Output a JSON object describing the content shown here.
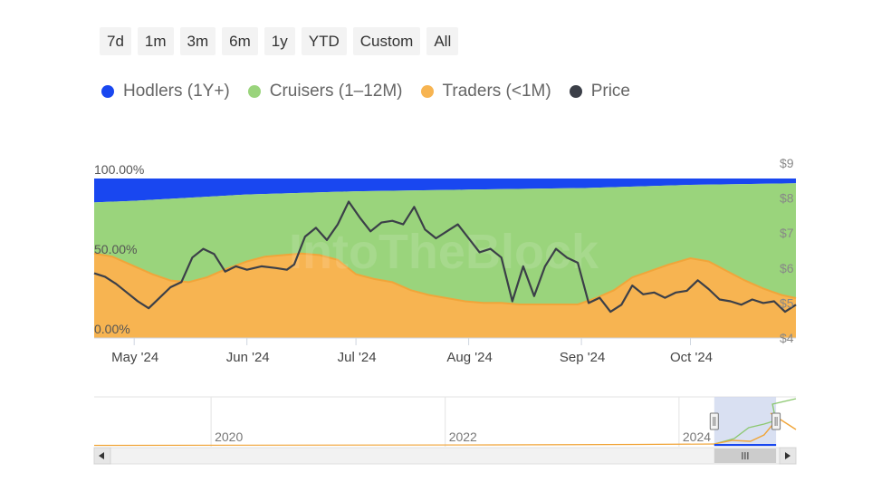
{
  "range_selector": {
    "buttons": [
      "7d",
      "1m",
      "3m",
      "6m",
      "1y",
      "YTD",
      "Custom",
      "All"
    ]
  },
  "colors": {
    "hodlers": "#1947f0",
    "cruisers": "#9ad47c",
    "traders": "#f7b451",
    "traders_line": "#f0a53a",
    "price": "#3b3f48",
    "navigator_bg": "#ccd6ee"
  },
  "chart_data": {
    "type": "area",
    "legend": [
      {
        "name": "Hodlers (1Y+)",
        "color": "#1947f0"
      },
      {
        "name": "Cruisers (1–12M)",
        "color": "#9ad47c"
      },
      {
        "name": "Traders (<1M)",
        "color": "#f7b451"
      },
      {
        "name": "Price",
        "color": "#3b3f48"
      }
    ],
    "legend_placement": "top-left",
    "x_axis": {
      "tick_labels": [
        "May '24",
        "Jun '24",
        "Jul '24",
        "Aug '24",
        "Sep '24",
        "Oct '24"
      ],
      "tick_dates": [
        "2024-05-01",
        "2024-06-01",
        "2024-07-01",
        "2024-08-01",
        "2024-09-01",
        "2024-10-01"
      ],
      "range": [
        "2024-04-20",
        "2024-10-30"
      ]
    },
    "y_left": {
      "tick_labels": [
        "100.00%",
        "50.00%",
        "0.00%"
      ],
      "range": [
        0,
        100
      ]
    },
    "y_right": {
      "tick_labels": [
        "$9",
        "$8",
        "$7",
        "$6",
        "$5",
        "$4"
      ],
      "range": [
        4,
        9
      ]
    },
    "series": [
      {
        "name": "Traders (<1M)",
        "unit": "%",
        "points": [
          [
            "2024-04-20",
            53
          ],
          [
            "2024-04-25",
            51
          ],
          [
            "2024-05-01",
            45
          ],
          [
            "2024-05-06",
            40
          ],
          [
            "2024-05-11",
            36
          ],
          [
            "2024-05-16",
            35
          ],
          [
            "2024-05-21",
            38
          ],
          [
            "2024-05-26",
            43
          ],
          [
            "2024-06-01",
            48
          ],
          [
            "2024-06-06",
            51
          ],
          [
            "2024-06-11",
            52
          ],
          [
            "2024-06-16",
            53
          ],
          [
            "2024-06-21",
            52
          ],
          [
            "2024-06-26",
            49
          ],
          [
            "2024-07-01",
            40
          ],
          [
            "2024-07-06",
            37
          ],
          [
            "2024-07-11",
            35
          ],
          [
            "2024-07-16",
            30
          ],
          [
            "2024-07-21",
            27
          ],
          [
            "2024-07-26",
            25
          ],
          [
            "2024-07-31",
            23
          ],
          [
            "2024-08-05",
            22
          ],
          [
            "2024-08-10",
            22
          ],
          [
            "2024-08-15",
            21
          ],
          [
            "2024-08-20",
            21
          ],
          [
            "2024-08-25",
            21
          ],
          [
            "2024-08-31",
            21
          ],
          [
            "2024-09-05",
            25
          ],
          [
            "2024-09-10",
            30
          ],
          [
            "2024-09-15",
            38
          ],
          [
            "2024-09-20",
            42
          ],
          [
            "2024-09-25",
            46
          ],
          [
            "2024-10-01",
            50
          ],
          [
            "2024-10-06",
            48
          ],
          [
            "2024-10-11",
            42
          ],
          [
            "2024-10-16",
            36
          ],
          [
            "2024-10-21",
            31
          ],
          [
            "2024-10-26",
            27
          ],
          [
            "2024-10-30",
            25
          ]
        ]
      },
      {
        "name": "Cruisers (1–12M)",
        "unit": "%",
        "points": [
          [
            "2024-04-20",
            85
          ],
          [
            "2024-05-01",
            86
          ],
          [
            "2024-06-01",
            90
          ],
          [
            "2024-07-01",
            92
          ],
          [
            "2024-08-01",
            93
          ],
          [
            "2024-09-01",
            94
          ],
          [
            "2024-10-01",
            96
          ],
          [
            "2024-10-30",
            97
          ]
        ]
      },
      {
        "name": "Hodlers (1Y+)",
        "unit": "%",
        "points": [
          [
            "2024-04-20",
            15
          ],
          [
            "2024-05-01",
            14
          ],
          [
            "2024-06-01",
            10
          ],
          [
            "2024-07-01",
            8
          ],
          [
            "2024-08-01",
            7
          ],
          [
            "2024-09-01",
            6
          ],
          [
            "2024-10-01",
            4
          ],
          [
            "2024-10-30",
            3
          ]
        ]
      },
      {
        "name": "Price",
        "unit": "$",
        "axis": "right",
        "points": [
          [
            "2024-04-20",
            5.85
          ],
          [
            "2024-04-23",
            5.75
          ],
          [
            "2024-04-26",
            5.55
          ],
          [
            "2024-04-29",
            5.3
          ],
          [
            "2024-05-02",
            5.05
          ],
          [
            "2024-05-05",
            4.85
          ],
          [
            "2024-05-08",
            5.15
          ],
          [
            "2024-05-11",
            5.45
          ],
          [
            "2024-05-14",
            5.6
          ],
          [
            "2024-05-17",
            6.3
          ],
          [
            "2024-05-20",
            6.55
          ],
          [
            "2024-05-23",
            6.4
          ],
          [
            "2024-05-26",
            5.9
          ],
          [
            "2024-05-29",
            6.05
          ],
          [
            "2024-06-01",
            5.95
          ],
          [
            "2024-06-05",
            6.05
          ],
          [
            "2024-06-09",
            6.0
          ],
          [
            "2024-06-12",
            5.95
          ],
          [
            "2024-06-14",
            6.1
          ],
          [
            "2024-06-17",
            6.9
          ],
          [
            "2024-06-20",
            7.15
          ],
          [
            "2024-06-23",
            6.8
          ],
          [
            "2024-06-26",
            7.25
          ],
          [
            "2024-06-29",
            7.9
          ],
          [
            "2024-07-02",
            7.45
          ],
          [
            "2024-07-05",
            7.05
          ],
          [
            "2024-07-08",
            7.3
          ],
          [
            "2024-07-11",
            7.35
          ],
          [
            "2024-07-14",
            7.25
          ],
          [
            "2024-07-17",
            7.75
          ],
          [
            "2024-07-20",
            7.1
          ],
          [
            "2024-07-23",
            6.85
          ],
          [
            "2024-07-26",
            7.05
          ],
          [
            "2024-07-29",
            7.25
          ],
          [
            "2024-08-01",
            6.85
          ],
          [
            "2024-08-04",
            6.45
          ],
          [
            "2024-08-07",
            6.55
          ],
          [
            "2024-08-10",
            6.3
          ],
          [
            "2024-08-13",
            5.05
          ],
          [
            "2024-08-16",
            6.05
          ],
          [
            "2024-08-19",
            5.2
          ],
          [
            "2024-08-22",
            6.05
          ],
          [
            "2024-08-25",
            6.55
          ],
          [
            "2024-08-28",
            6.3
          ],
          [
            "2024-08-31",
            6.15
          ],
          [
            "2024-09-03",
            5.0
          ],
          [
            "2024-09-06",
            5.15
          ],
          [
            "2024-09-09",
            4.75
          ],
          [
            "2024-09-12",
            4.95
          ],
          [
            "2024-09-15",
            5.5
          ],
          [
            "2024-09-18",
            5.25
          ],
          [
            "2024-09-21",
            5.3
          ],
          [
            "2024-09-24",
            5.15
          ],
          [
            "2024-09-27",
            5.3
          ],
          [
            "2024-09-30",
            5.35
          ],
          [
            "2024-10-03",
            5.65
          ],
          [
            "2024-10-06",
            5.4
          ],
          [
            "2024-10-09",
            5.1
          ],
          [
            "2024-10-12",
            5.05
          ],
          [
            "2024-10-15",
            4.95
          ],
          [
            "2024-10-18",
            5.1
          ],
          [
            "2024-10-21",
            5.0
          ],
          [
            "2024-10-24",
            5.05
          ],
          [
            "2024-10-27",
            4.75
          ],
          [
            "2024-10-30",
            4.95
          ]
        ]
      }
    ],
    "navigator": {
      "tick_labels": [
        "2020",
        "2022",
        "2024"
      ],
      "tick_dates": [
        "2020-01-01",
        "2022-01-01",
        "2024-01-01"
      ],
      "range": [
        "2019-01-01",
        "2024-12-31"
      ],
      "selected_range": [
        "2024-04-20",
        "2024-10-30"
      ]
    },
    "watermark": "IntoTheBlock"
  }
}
